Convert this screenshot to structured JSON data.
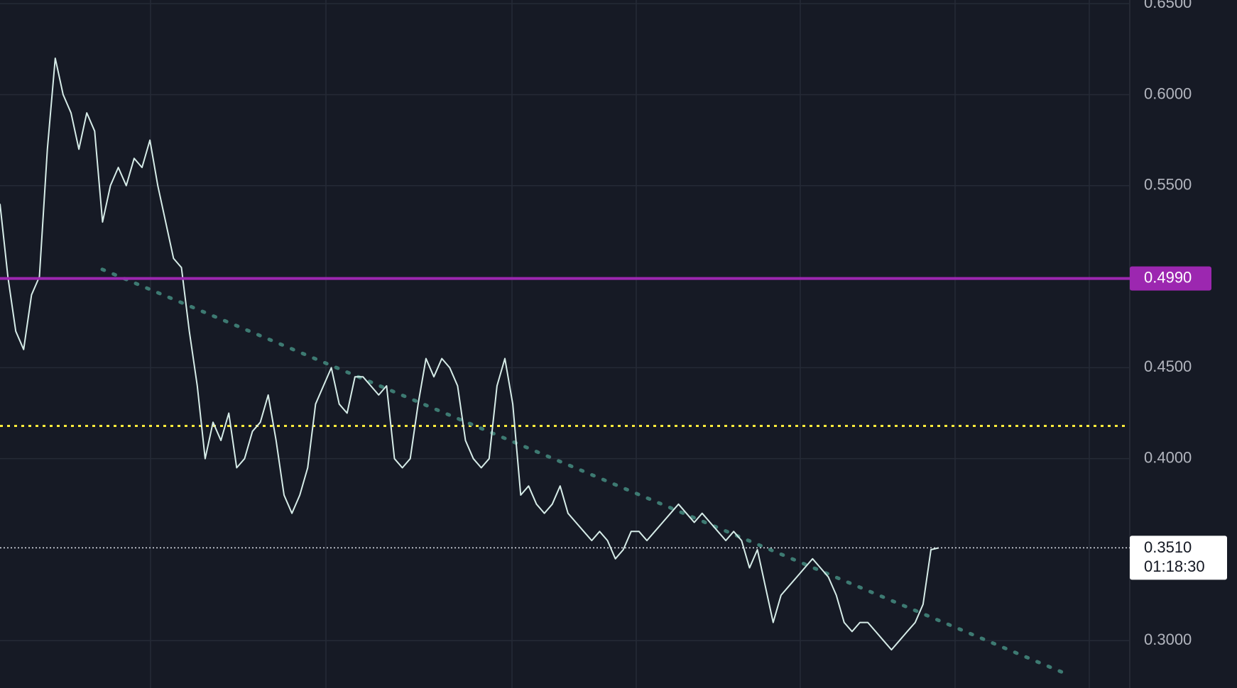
{
  "chart_data": {
    "type": "line",
    "ylim": [
      0.274,
      0.652
    ],
    "yticks": [
      {
        "value": 0.65,
        "label": "0.6500"
      },
      {
        "value": 0.6,
        "label": "0.6000"
      },
      {
        "value": 0.55,
        "label": "0.5500"
      },
      {
        "value": 0.45,
        "label": "0.4500"
      },
      {
        "value": 0.4,
        "label": "0.4000"
      },
      {
        "value": 0.3,
        "label": "0.3000"
      }
    ],
    "grid": true,
    "color": "#d6ece8",
    "values": [
      0.54,
      0.5,
      0.47,
      0.46,
      0.49,
      0.5,
      0.57,
      0.62,
      0.6,
      0.59,
      0.57,
      0.59,
      0.58,
      0.53,
      0.55,
      0.56,
      0.55,
      0.565,
      0.56,
      0.575,
      0.55,
      0.53,
      0.51,
      0.505,
      0.47,
      0.44,
      0.4,
      0.42,
      0.41,
      0.425,
      0.395,
      0.4,
      0.415,
      0.42,
      0.435,
      0.41,
      0.38,
      0.37,
      0.38,
      0.395,
      0.43,
      0.44,
      0.45,
      0.43,
      0.425,
      0.445,
      0.445,
      0.44,
      0.435,
      0.44,
      0.4,
      0.395,
      0.4,
      0.43,
      0.455,
      0.445,
      0.455,
      0.45,
      0.44,
      0.41,
      0.4,
      0.395,
      0.4,
      0.44,
      0.455,
      0.43,
      0.38,
      0.385,
      0.375,
      0.37,
      0.375,
      0.385,
      0.37,
      0.365,
      0.36,
      0.355,
      0.36,
      0.355,
      0.345,
      0.35,
      0.36,
      0.36,
      0.355,
      0.36,
      0.365,
      0.37,
      0.375,
      0.37,
      0.365,
      0.37,
      0.365,
      0.36,
      0.355,
      0.36,
      0.355,
      0.34,
      0.35,
      0.33,
      0.31,
      0.325,
      0.33,
      0.335,
      0.34,
      0.345,
      0.34,
      0.335,
      0.325,
      0.31,
      0.305,
      0.31,
      0.31,
      0.305,
      0.3,
      0.295,
      0.3,
      0.305,
      0.31,
      0.32,
      0.35,
      0.351
    ],
    "price_line": {
      "value": 0.499,
      "label": "0.4990",
      "color": "#9c27b0"
    },
    "alert_line": {
      "value": 0.418,
      "color": "#ffeb3b"
    },
    "trend_line": {
      "values": [
        0.504,
        0.282
      ],
      "color": "#3d7a72"
    },
    "current_price": {
      "value": 0.351,
      "label": "0.3510",
      "countdown": "01:18:30"
    }
  }
}
